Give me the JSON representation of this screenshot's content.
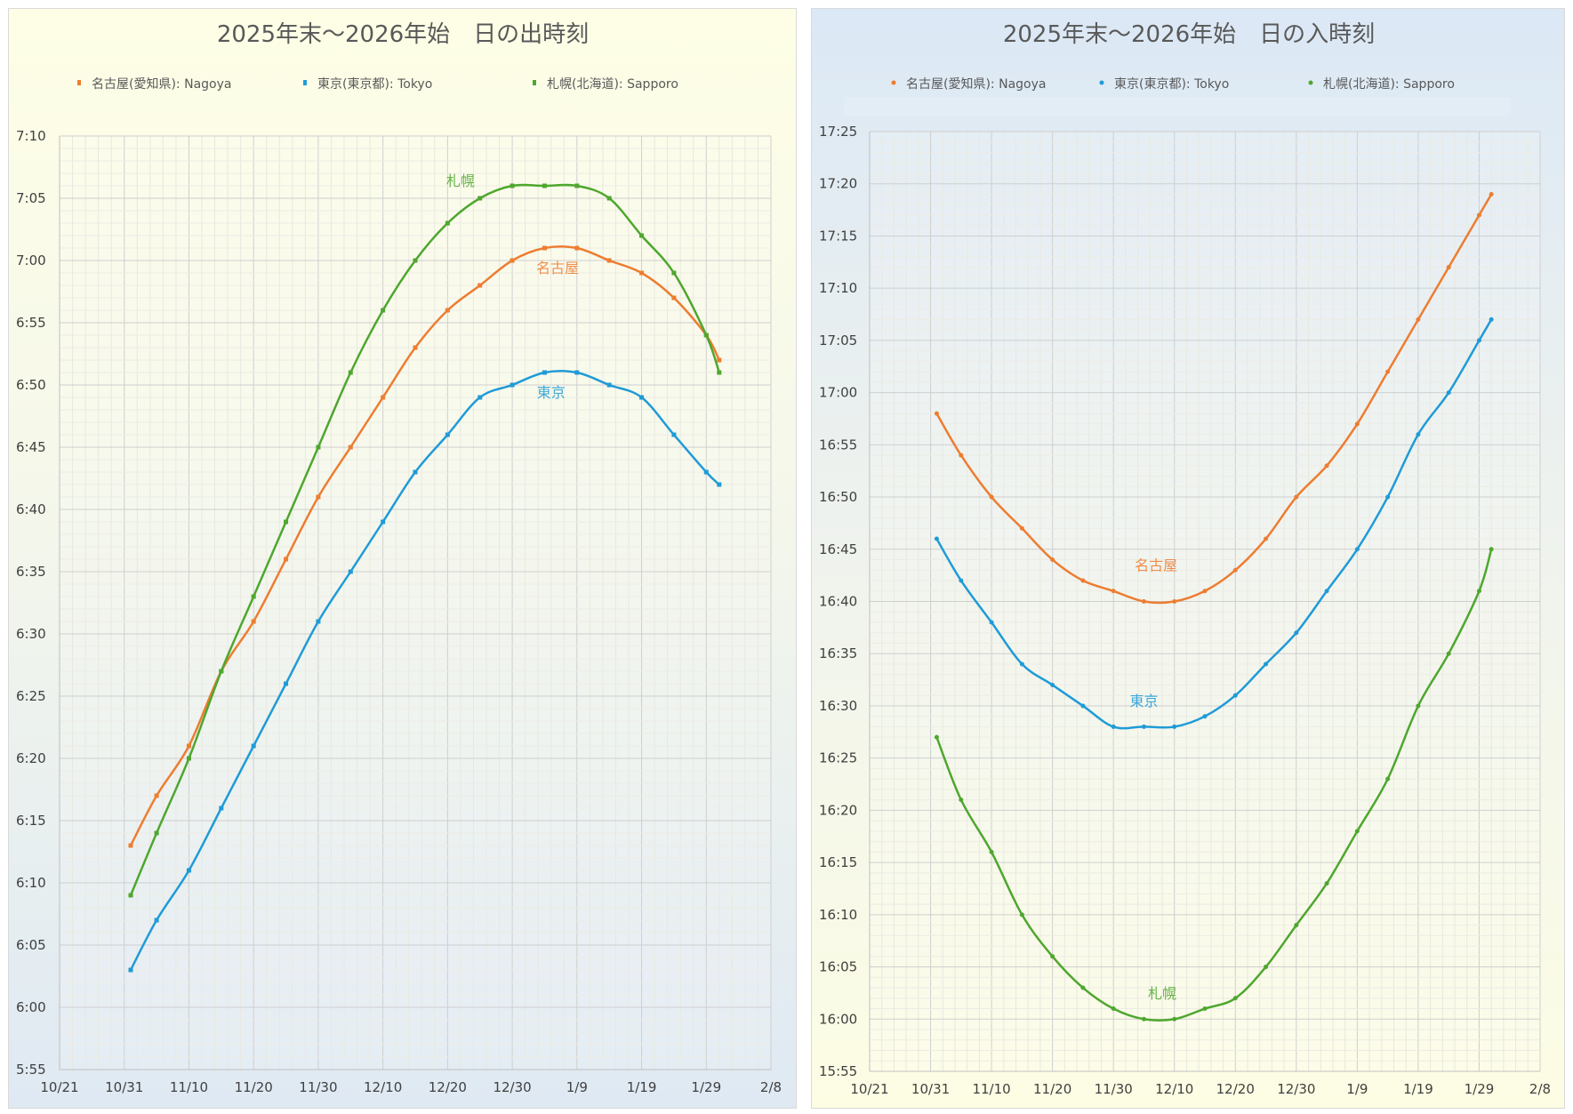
{
  "chart_data": [
    {
      "type": "line",
      "title": "2025年末～2026年始　日の出時刻",
      "xlabel": "",
      "ylabel": "",
      "x_ticks": [
        "10/21",
        "10/31",
        "11/10",
        "11/20",
        "11/30",
        "12/10",
        "12/20",
        "12/30",
        "1/9",
        "1/19",
        "1/29",
        "2/8"
      ],
      "y_ticks": [
        "7:10",
        "7:05",
        "7:00",
        "6:55",
        "6:50",
        "6:45",
        "6:40",
        "6:35",
        "6:30",
        "6:25",
        "6:20",
        "6:15",
        "6:10",
        "6:05",
        "6:00",
        "5:55"
      ],
      "ylim": [
        "5:55",
        "7:10"
      ],
      "xlim_days_from_10_21": [
        0,
        110
      ],
      "grid": true,
      "legend_position": "top",
      "x_days_from_10_21": [
        11,
        15,
        20,
        25,
        30,
        35,
        40,
        45,
        50,
        55,
        60,
        65,
        70,
        75,
        80,
        85,
        90,
        95,
        100,
        102
      ],
      "series": [
        {
          "name": "名古屋(愛知県): Nagoya",
          "color": "#ed7d31",
          "marker": "square",
          "values": [
            "6:13",
            "6:17",
            "6:21",
            "6:27",
            "6:31",
            "6:36",
            "6:41",
            "6:45",
            "6:49",
            "6:53",
            "6:56",
            "6:58",
            "7:00",
            "7:01",
            "7:01",
            "7:00",
            "6:59",
            "6:57",
            "6:54",
            "6:52"
          ]
        },
        {
          "name": "東京(東京都): Tokyo",
          "color": "#1f9bd7",
          "marker": "square",
          "values": [
            "6:03",
            "6:07",
            "6:11",
            "6:16",
            "6:21",
            "6:26",
            "6:31",
            "6:35",
            "6:39",
            "6:43",
            "6:46",
            "6:49",
            "6:50",
            "6:51",
            "6:51",
            "6:50",
            "6:49",
            "6:46",
            "6:43",
            "6:42"
          ]
        },
        {
          "name": "札幌(北海道): Sapporo",
          "color": "#4ea72e",
          "marker": "square",
          "values": [
            "6:09",
            "6:14",
            "6:20",
            "6:27",
            "6:33",
            "6:39",
            "6:45",
            "6:51",
            "6:56",
            "7:00",
            "7:03",
            "7:05",
            "7:06",
            "7:06",
            "7:06",
            "7:05",
            "7:02",
            "6:59",
            "6:54",
            "6:51"
          ]
        }
      ],
      "annotations": [
        {
          "text": "札幌",
          "series": 2,
          "at_day": 62,
          "at_time": "7:06"
        },
        {
          "text": "名古屋",
          "series": 0,
          "at_day": 77,
          "at_time": "6:59"
        },
        {
          "text": "東京",
          "series": 1,
          "at_day": 76,
          "at_time": "6:49"
        }
      ]
    },
    {
      "type": "line",
      "title": "2025年末～2026年始　日の入時刻",
      "xlabel": "",
      "ylabel": "",
      "x_ticks": [
        "10/21",
        "10/31",
        "11/10",
        "11/20",
        "11/30",
        "12/10",
        "12/20",
        "12/30",
        "1/9",
        "1/19",
        "1/29",
        "2/8"
      ],
      "y_ticks": [
        "17:25",
        "17:20",
        "17:15",
        "17:10",
        "17:05",
        "17:00",
        "16:55",
        "16:50",
        "16:45",
        "16:40",
        "16:35",
        "16:30",
        "16:25",
        "16:20",
        "16:15",
        "16:10",
        "16:05",
        "16:00",
        "15:55"
      ],
      "ylim": [
        "15:55",
        "17:25"
      ],
      "xlim_days_from_10_21": [
        0,
        110
      ],
      "grid": true,
      "legend_position": "top",
      "x_days_from_10_21": [
        11,
        15,
        20,
        25,
        30,
        35,
        40,
        45,
        50,
        55,
        60,
        65,
        70,
        75,
        80,
        85,
        90,
        95,
        100,
        102
      ],
      "series": [
        {
          "name": "名古屋(愛知県): Nagoya",
          "color": "#ed7d31",
          "marker": "circle",
          "values": [
            "16:58",
            "16:54",
            "16:50",
            "16:47",
            "16:44",
            "16:42",
            "16:41",
            "16:40",
            "16:40",
            "16:41",
            "16:43",
            "16:46",
            "16:50",
            "16:53",
            "16:57",
            "17:02",
            "17:07",
            "17:12",
            "17:17",
            "17:19"
          ]
        },
        {
          "name": "東京(東京都): Tokyo",
          "color": "#1f9bd7",
          "marker": "circle",
          "values": [
            "16:46",
            "16:42",
            "16:38",
            "16:34",
            "16:32",
            "16:30",
            "16:28",
            "16:28",
            "16:28",
            "16:29",
            "16:31",
            "16:34",
            "16:37",
            "16:41",
            "16:45",
            "16:50",
            "16:56",
            "17:00",
            "17:05",
            "17:07"
          ]
        },
        {
          "name": "札幌(北海道): Sapporo",
          "color": "#4ea72e",
          "marker": "circle",
          "values": [
            "16:27",
            "16:21",
            "16:16",
            "16:10",
            "16:06",
            "16:03",
            "16:01",
            "16:00",
            "16:00",
            "16:01",
            "16:02",
            "16:05",
            "16:09",
            "16:13",
            "16:18",
            "16:23",
            "16:30",
            "16:35",
            "16:41",
            "16:45"
          ]
        }
      ],
      "annotations": [
        {
          "text": "名古屋",
          "series": 0,
          "at_day": 47,
          "at_time": "16:43"
        },
        {
          "text": "東京",
          "series": 1,
          "at_day": 45,
          "at_time": "16:30"
        },
        {
          "text": "札幌",
          "series": 2,
          "at_day": 48,
          "at_time": "16:02"
        }
      ]
    }
  ]
}
